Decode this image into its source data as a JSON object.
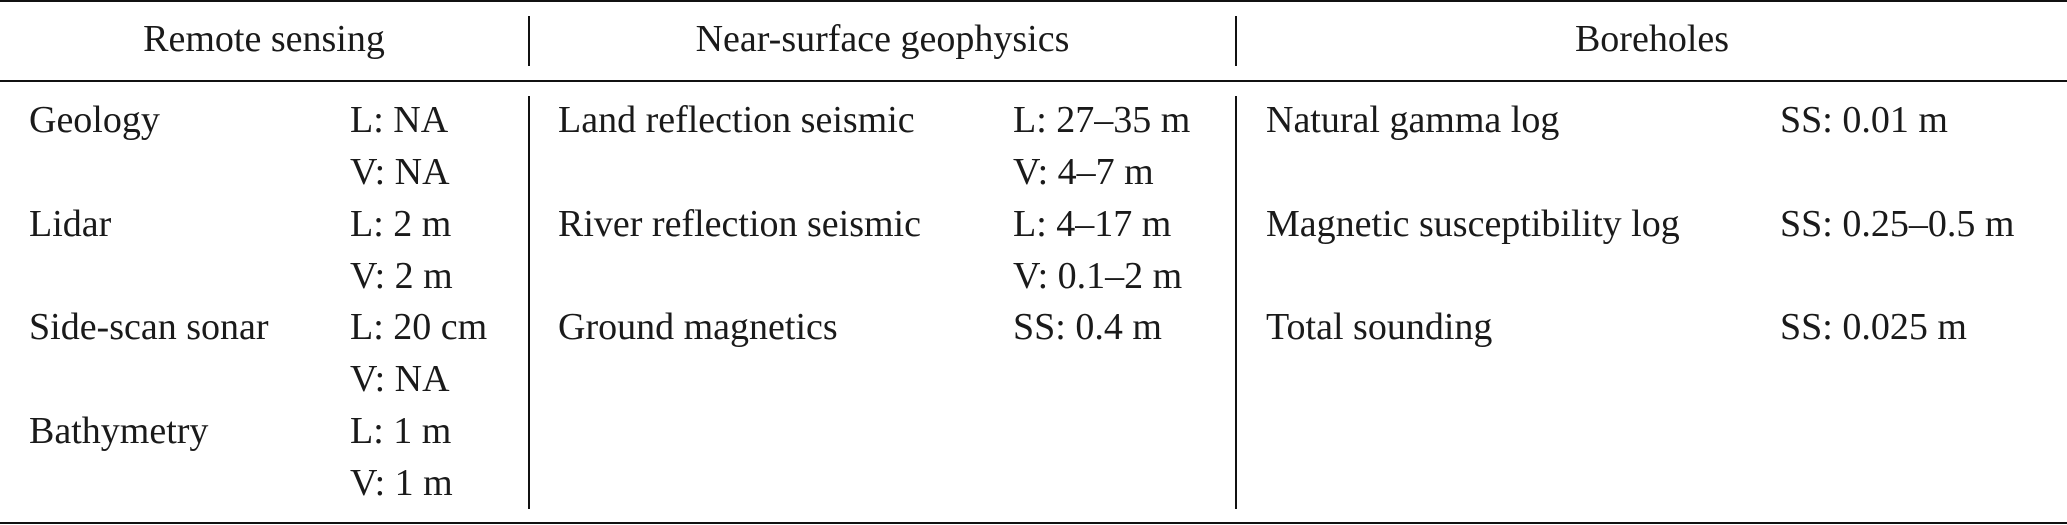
{
  "headers": {
    "remote_sensing": "Remote sensing",
    "near_surface": "Near-surface geophysics",
    "boreholes": "Boreholes"
  },
  "remote_sensing": [
    {
      "method": "Geology",
      "res1": "L: NA",
      "res2": "V: NA"
    },
    {
      "method": "Lidar",
      "res1": "L: 2 m",
      "res2": "V: 2 m"
    },
    {
      "method": "Side-scan sonar",
      "res1": "L: 20 cm",
      "res2": "V: NA"
    },
    {
      "method": "Bathymetry",
      "res1": "L: 1 m",
      "res2": "V: 1 m"
    }
  ],
  "near_surface": [
    {
      "method": "Land reflection seismic",
      "res1": "L: 27–35 m",
      "res2": "V: 4–7 m"
    },
    {
      "method": "River reflection seismic",
      "res1": "L: 4–17 m",
      "res2": "V: 0.1–2 m"
    },
    {
      "method": "Ground magnetics",
      "res1": "SS: 0.4 m"
    }
  ],
  "boreholes": [
    {
      "method": "Natural gamma log",
      "res1": "SS: 0.01 m"
    },
    {
      "method": "Magnetic susceptibility log",
      "res1": "SS: 0.25–0.5 m"
    },
    {
      "method": "Total sounding",
      "res1": "SS: 0.025 m"
    }
  ]
}
